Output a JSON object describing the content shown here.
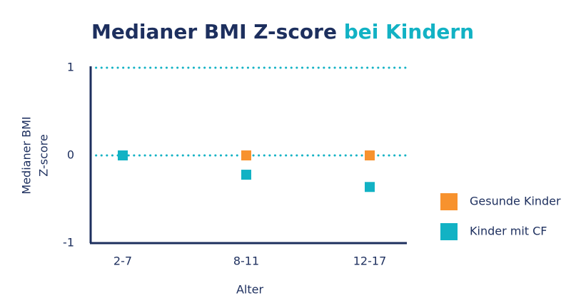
{
  "chart_data": {
    "type": "scatter",
    "title": "Medianer BMI Z-score",
    "title_highlight": "bei Kindern",
    "ylabel": [
      "Medianer BMI",
      "Z-score"
    ],
    "xlabel": "Alter",
    "categories": [
      "2-7",
      "8-11",
      "12-17"
    ],
    "series": [
      {
        "name": "Gesunde Kinder",
        "color": "#f7922e",
        "values": [
          0,
          0,
          0
        ]
      },
      {
        "name": "Kinder mit CF",
        "color": "#12b2c4",
        "values": [
          0,
          -0.22,
          -0.36
        ]
      }
    ],
    "ylim": [
      -1,
      1
    ],
    "yticks": [
      -1,
      0,
      1
    ],
    "grid": true,
    "grid_color": "#12b2c4",
    "legend": "right"
  }
}
